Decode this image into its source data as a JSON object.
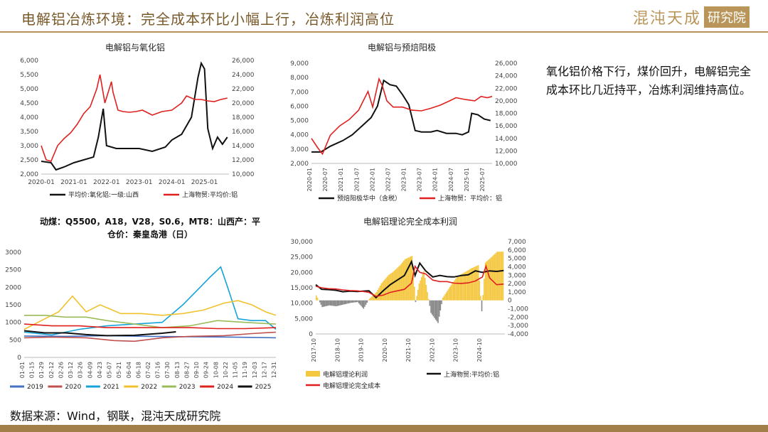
{
  "header": {
    "title": "电解铝冶炼环境：完全成本环比小幅上行，冶炼利润高位"
  },
  "logo": {
    "main": "混沌天成",
    "box": "研究院"
  },
  "side_text": "氧化铝价格下行，煤价回升，电解铝完全成本环比几近持平，冶炼利润维持高位。",
  "footer": {
    "source": "数据来源：Wind，钢联，混沌天成研究院"
  },
  "colors": {
    "red": "#e0201f",
    "black": "#111111",
    "gold": "#f5c842",
    "accent": "#b5935a"
  },
  "chart_data": [
    {
      "id": "c1",
      "type": "line",
      "title": "电解铝与氧化铝",
      "x_ticks": [
        "2020-01",
        "2021-01",
        "2022-01",
        "2023-01",
        "2024-01",
        "2025-01"
      ],
      "x_range": [
        2020.0,
        2025.75
      ],
      "y_left": {
        "range": [
          2000,
          6000
        ],
        "ticks": [
          "2,000",
          "2,500",
          "3,000",
          "3,500",
          "4,000",
          "4,500",
          "5,000",
          "5,500",
          "6,000"
        ]
      },
      "y_right": {
        "range": [
          10000,
          26000
        ],
        "ticks": [
          "10,000",
          "12,000",
          "14,000",
          "16,000",
          "18,000",
          "20,000",
          "22,000",
          "24,000",
          "26,000"
        ]
      },
      "series": [
        {
          "name": "平均价:氧化铝:一级:山西",
          "axis": "left",
          "color": "#111111",
          "x": [
            2020.0,
            2020.3,
            2020.45,
            2020.7,
            2021.0,
            2021.3,
            2021.6,
            2021.75,
            2021.9,
            2022.0,
            2022.3,
            2022.6,
            2023.0,
            2023.4,
            2023.8,
            2024.0,
            2024.3,
            2024.6,
            2024.8,
            2024.9,
            2025.0,
            2025.1,
            2025.25,
            2025.4,
            2025.55,
            2025.7
          ],
          "y": [
            2450,
            2400,
            2150,
            2250,
            2400,
            2500,
            2600,
            3300,
            4300,
            3000,
            2900,
            2900,
            2900,
            2800,
            2950,
            3200,
            3400,
            4000,
            5400,
            5900,
            5700,
            3600,
            2900,
            3300,
            3050,
            3300
          ]
        },
        {
          "name": "上海物贸:平均价:铝",
          "axis": "right",
          "color": "#e0201f",
          "x": [
            2020.0,
            2020.15,
            2020.3,
            2020.5,
            2020.7,
            2020.9,
            2021.1,
            2021.3,
            2021.5,
            2021.7,
            2021.8,
            2021.95,
            2022.15,
            2022.2,
            2022.35,
            2022.5,
            2022.7,
            2022.9,
            2023.1,
            2023.4,
            2023.7,
            2024.0,
            2024.3,
            2024.45,
            2024.7,
            2024.9,
            2025.1,
            2025.3,
            2025.5,
            2025.7
          ],
          "y": [
            14000,
            12000,
            11800,
            14000,
            15000,
            15800,
            17000,
            18500,
            19500,
            22000,
            24000,
            20000,
            23000,
            21500,
            19000,
            18800,
            18700,
            18800,
            19000,
            18300,
            18800,
            19000,
            20000,
            21000,
            20500,
            20500,
            20300,
            20200,
            20500,
            20700
          ]
        }
      ]
    },
    {
      "id": "c2",
      "type": "line",
      "title": "电解铝与预焙阳极",
      "x_ticks": [
        "2020-01",
        "2020-07",
        "2021-01",
        "2021-07",
        "2022-01",
        "2022-07",
        "2023-01",
        "2023-07",
        "2024-01",
        "2024-07",
        "2025-01",
        "2025-07"
      ],
      "x_range": [
        2020.0,
        2025.75
      ],
      "y_left": {
        "range": [
          2000,
          9000
        ],
        "ticks": [
          "2,000",
          "3,000",
          "4,000",
          "5,000",
          "6,000",
          "7,000",
          "8,000",
          "9,000"
        ]
      },
      "y_right": {
        "range": [
          10000,
          26000
        ],
        "ticks": [
          "10,000",
          "12,000",
          "14,000",
          "16,000",
          "18,000",
          "20,000",
          "22,000",
          "24,000",
          "26,000"
        ]
      },
      "series": [
        {
          "name": "预焙阳极华中（含税）",
          "axis": "left",
          "color": "#111111",
          "x": [
            2020.0,
            2020.3,
            2020.6,
            2021.0,
            2021.3,
            2021.6,
            2021.9,
            2022.1,
            2022.3,
            2022.5,
            2022.7,
            2022.9,
            2023.1,
            2023.3,
            2023.5,
            2023.8,
            2024.0,
            2024.3,
            2024.6,
            2024.8,
            2025.0,
            2025.1,
            2025.3,
            2025.5,
            2025.7
          ],
          "y": [
            2800,
            2800,
            3200,
            3600,
            4000,
            4600,
            5200,
            6000,
            7800,
            7500,
            7400,
            6800,
            6100,
            4300,
            4200,
            4200,
            4300,
            4100,
            4100,
            4000,
            4200,
            5500,
            5400,
            5100,
            5000
          ]
        },
        {
          "name": "上海物贸：平均价：铝",
          "axis": "right",
          "color": "#e0201f",
          "x": [
            2020.0,
            2020.2,
            2020.35,
            2020.6,
            2020.9,
            2021.2,
            2021.5,
            2021.8,
            2021.95,
            2022.15,
            2022.25,
            2022.4,
            2022.6,
            2022.9,
            2023.2,
            2023.5,
            2023.8,
            2024.1,
            2024.4,
            2024.6,
            2024.9,
            2025.2,
            2025.4,
            2025.6,
            2025.75
          ],
          "y": [
            14000,
            12500,
            11500,
            14500,
            16000,
            17000,
            18500,
            21500,
            19000,
            23500,
            22500,
            20000,
            19000,
            19000,
            18500,
            18400,
            18800,
            19300,
            20000,
            20500,
            20200,
            20000,
            20700,
            20500,
            20700
          ]
        }
      ]
    },
    {
      "id": "c3",
      "type": "line",
      "title": "动煤：Q5500，A18，V28，S0.6，MT8：山西产：平仓价：秦皇岛港（日）",
      "title_line1": "动煤：Q5500，A18，V28，S0.6，MT8：山西产：平",
      "title_line2": "仓价：秦皇岛港（日）",
      "x_ticks": [
        "01-01",
        "01-15",
        "01-29",
        "02-12",
        "02-26",
        "03-12",
        "03-26",
        "04-09",
        "04-23",
        "05-07",
        "05-21",
        "06-04",
        "06-18",
        "07-02",
        "07-16",
        "07-30",
        "08-13",
        "08-27",
        "09-10",
        "09-24",
        "10-08",
        "10-22",
        "11-05",
        "11-19",
        "12-03",
        "12-17",
        "12-31"
      ],
      "x_range": [
        0,
        365
      ],
      "y_left": {
        "range": [
          0,
          3000
        ],
        "ticks": [
          "0",
          "500",
          "1000",
          "1500",
          "2000",
          "2500",
          "3000"
        ]
      },
      "series": [
        {
          "name": "2019",
          "color": "#4472c4",
          "x": [
            0,
            60,
            120,
            180,
            240,
            300,
            365
          ],
          "y": [
            610,
            600,
            620,
            600,
            590,
            580,
            560
          ]
        },
        {
          "name": "2020",
          "color": "#c0504d",
          "x": [
            0,
            40,
            90,
            130,
            160,
            200,
            240,
            290,
            330,
            365
          ],
          "y": [
            560,
            580,
            560,
            480,
            460,
            560,
            600,
            620,
            680,
            720
          ]
        },
        {
          "name": "2021",
          "color": "#17a2d8",
          "x": [
            0,
            40,
            80,
            120,
            160,
            200,
            230,
            250,
            270,
            285,
            295,
            310,
            330,
            350,
            365
          ],
          "y": [
            720,
            640,
            800,
            900,
            950,
            1000,
            1500,
            1900,
            2300,
            2580,
            2000,
            1100,
            1050,
            1050,
            800
          ]
        },
        {
          "name": "2022",
          "color": "#f2c12e",
          "x": [
            0,
            30,
            50,
            70,
            90,
            110,
            140,
            170,
            200,
            230,
            260,
            290,
            310,
            330,
            350,
            365
          ],
          "y": [
            800,
            1100,
            1300,
            1750,
            1300,
            1500,
            1250,
            1250,
            1200,
            1250,
            1350,
            1550,
            1620,
            1500,
            1300,
            1200
          ]
        },
        {
          "name": "2023",
          "color": "#9bbb59",
          "x": [
            0,
            30,
            60,
            90,
            120,
            160,
            200,
            240,
            280,
            320,
            365
          ],
          "y": [
            1200,
            1200,
            1150,
            1150,
            1050,
            950,
            850,
            900,
            1050,
            1000,
            950
          ]
        },
        {
          "name": "2024",
          "color": "#e0201f",
          "x": [
            0,
            40,
            80,
            120,
            160,
            200,
            240,
            280,
            320,
            365
          ],
          "y": [
            950,
            900,
            900,
            850,
            850,
            850,
            850,
            820,
            820,
            850
          ]
        },
        {
          "name": "2025",
          "color": "#111111",
          "x": [
            0,
            30,
            60,
            90,
            120,
            160,
            200,
            220
          ],
          "y": [
            760,
            700,
            700,
            650,
            620,
            630,
            690,
            730
          ]
        }
      ]
    },
    {
      "id": "c4",
      "type": "area",
      "title": "电解铝理论完全成本利润",
      "x_ticks": [
        "2017-10",
        "2018-10",
        "2019-10",
        "2020-10",
        "2021-10",
        "2022-10",
        "2023-10",
        "2024-10"
      ],
      "x_range": [
        2017.75,
        2025.75
      ],
      "y_left": {
        "range": [
          0,
          30000
        ],
        "ticks": [
          "0",
          "5,000",
          "10,000",
          "15,000",
          "20,000",
          "25,000",
          "30,000"
        ]
      },
      "y_right": {
        "range": [
          -4000,
          7000
        ],
        "ticks": [
          "-4,000",
          "-3,000",
          "-2,000",
          "-1,000",
          "0",
          "1,000",
          "2,000",
          "3,000",
          "4,000",
          "5,000",
          "6,000",
          "7,000"
        ]
      },
      "series": [
        {
          "name": "电解铝理论利润",
          "axis": "right",
          "color": "#f5c842",
          "x": [
            2017.75,
            2018.0,
            2018.3,
            2018.6,
            2018.9,
            2019.2,
            2019.5,
            2019.75,
            2020.0,
            2020.3,
            2020.5,
            2020.8,
            2021.0,
            2021.3,
            2021.5,
            2021.8,
            2021.95,
            2022.1,
            2022.3,
            2022.6,
            2022.9,
            2023.1,
            2023.4,
            2023.7,
            2024.0,
            2024.3,
            2024.6,
            2024.75,
            2024.9,
            2025.1,
            2025.4,
            2025.7
          ],
          "y": [
            600,
            -800,
            -600,
            -700,
            -500,
            -300,
            -200,
            -1000,
            200,
            1000,
            2000,
            3000,
            3400,
            4200,
            4900,
            5300,
            -200,
            2000,
            3500,
            -1500,
            -2700,
            300,
            1600,
            2800,
            3300,
            3800,
            4200,
            -1300,
            4500,
            5000,
            5800,
            5800
          ]
        },
        {
          "name": "上海物贸:平均价:铝",
          "axis": "left",
          "color": "#111111",
          "x": [
            2017.75,
            2018.0,
            2018.3,
            2018.6,
            2018.9,
            2019.2,
            2019.5,
            2019.75,
            2020.0,
            2020.3,
            2020.6,
            2020.9,
            2021.2,
            2021.5,
            2021.8,
            2021.95,
            2022.15,
            2022.4,
            2022.7,
            2023.0,
            2023.3,
            2023.6,
            2023.9,
            2024.2,
            2024.5,
            2024.8,
            2025.1,
            2025.4,
            2025.7
          ],
          "y": [
            16000,
            14500,
            14400,
            14200,
            13700,
            13900,
            13800,
            13900,
            14000,
            11800,
            14000,
            16000,
            17500,
            19000,
            23500,
            19000,
            23000,
            20500,
            18500,
            19000,
            18600,
            18500,
            19000,
            19200,
            20500,
            20000,
            20500,
            20300,
            20600
          ]
        },
        {
          "name": "电解铝理论完全成本",
          "axis": "left",
          "color": "#e0201f",
          "x": [
            2017.75,
            2018.0,
            2018.3,
            2018.6,
            2018.9,
            2019.2,
            2019.5,
            2019.75,
            2020.0,
            2020.3,
            2020.6,
            2020.9,
            2021.2,
            2021.5,
            2021.8,
            2021.95,
            2022.15,
            2022.4,
            2022.7,
            2023.0,
            2023.3,
            2023.6,
            2023.9,
            2024.2,
            2024.5,
            2024.8,
            2024.95,
            2025.1,
            2025.4,
            2025.7
          ],
          "y": [
            15500,
            15000,
            14700,
            14600,
            14300,
            14100,
            14000,
            13800,
            13500,
            12200,
            12600,
            13500,
            14000,
            14500,
            16500,
            22000,
            20000,
            19500,
            17500,
            17000,
            17000,
            16500,
            16400,
            16600,
            17200,
            18500,
            22000,
            18200,
            16000,
            16200
          ]
        }
      ]
    }
  ]
}
